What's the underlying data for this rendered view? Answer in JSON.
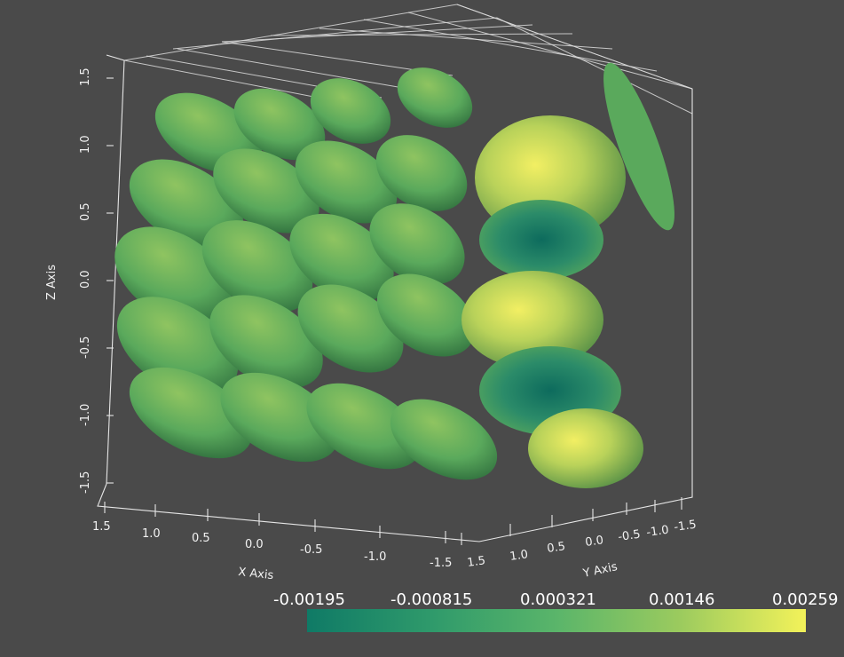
{
  "scene": {
    "background": "#4a4a4a",
    "surface_description": "isosurface lobes of a 3D scalar field"
  },
  "axes": {
    "z": {
      "title": "Z Axis",
      "ticks": [
        "1.5",
        "1.0",
        "0.5",
        "0.0",
        "-0.5",
        "-1.0",
        "-1.5"
      ]
    },
    "x": {
      "title": "X Axis",
      "ticks": [
        "1.5",
        "1.0",
        "0.5",
        "0.0",
        "-0.5",
        "-1.0",
        "-1.5"
      ]
    },
    "y": {
      "title": "Y Axis",
      "ticks": [
        "1.5",
        "1.0",
        "0.5",
        "0.0",
        "-0.5",
        "-1.0",
        "-1.5"
      ]
    }
  },
  "colorbar": {
    "labels": [
      "-0.00195",
      "-0.000815",
      "0.000321",
      "0.00146",
      "0.00259"
    ],
    "colors": [
      "#0f7a66",
      "#2f9a6b",
      "#5ab56a",
      "#9ccb5e",
      "#f3f25a"
    ]
  }
}
